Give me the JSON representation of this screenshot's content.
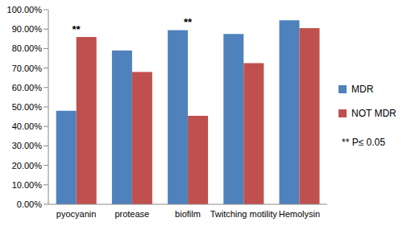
{
  "chart_data": {
    "type": "bar",
    "categories": [
      "pyocyanin",
      "protease",
      "biofilm",
      "Twitching motility",
      "Hemolysin"
    ],
    "series": [
      {
        "name": "MDR",
        "color": "#4f81bd",
        "values": [
          48,
          79,
          89.5,
          87.5,
          94.5
        ]
      },
      {
        "name": "NOT MDR",
        "color": "#c0504d",
        "values": [
          86,
          68,
          45.5,
          72.5,
          90.5
        ]
      }
    ],
    "ylim": [
      0,
      100
    ],
    "yticks": [
      {
        "value": 0,
        "label": "0.00%"
      },
      {
        "value": 10,
        "label": "10.00%"
      },
      {
        "value": 20,
        "label": "20.00%"
      },
      {
        "value": 30,
        "label": "30.00%"
      },
      {
        "value": 40,
        "label": "40.00%"
      },
      {
        "value": 50,
        "label": "50.00%"
      },
      {
        "value": 60,
        "label": "60.00%"
      },
      {
        "value": 70,
        "label": "70.00%"
      },
      {
        "value": 80,
        "label": "80.00%"
      },
      {
        "value": 90,
        "label": "90.00%"
      },
      {
        "value": 100,
        "label": "100.00%"
      }
    ],
    "grid": false,
    "legend": "right",
    "annotations": [
      {
        "text": "**",
        "category": "pyocyanin"
      },
      {
        "text": "**",
        "category": "biofilm"
      },
      {
        "text": "** P≤ 0.05"
      }
    ]
  }
}
